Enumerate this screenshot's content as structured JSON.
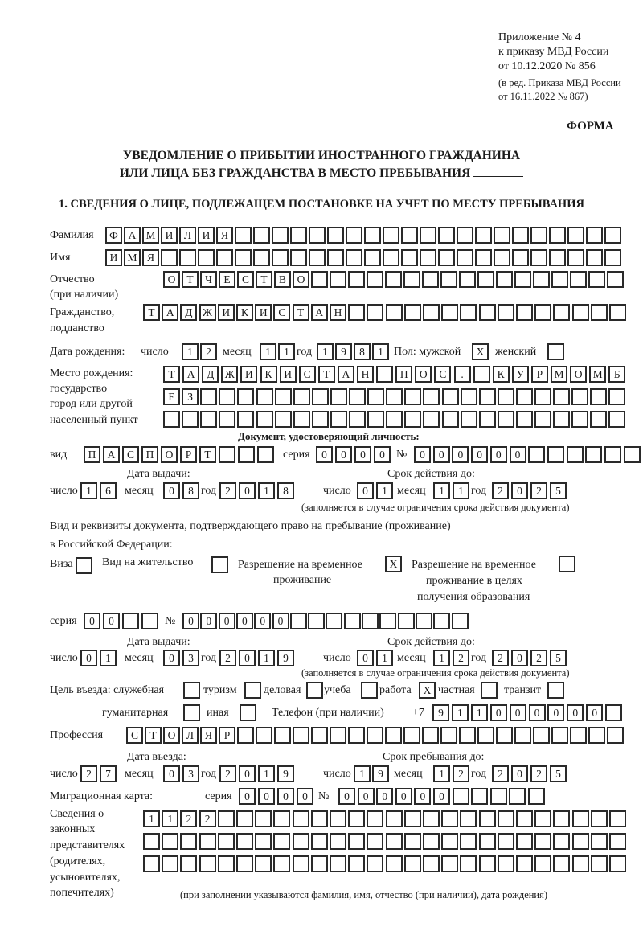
{
  "header": {
    "annex_line1": "Приложение № 4",
    "annex_line2": "к приказу МВД России",
    "annex_line3": "от 10.12.2020 № 856",
    "amend_line1": "(в ред. Приказа МВД России",
    "amend_line2": "от 16.11.2022 № 867)",
    "form_label": "ФОРМА",
    "title_line1": "УВЕДОМЛЕНИЕ О ПРИБЫТИИ ИНОСТРАННОГО ГРАЖДАНИНА",
    "title_line2": "ИЛИ ЛИЦА БЕЗ ГРАЖДАНСТВА В МЕСТО ПРЕБЫВАНИЯ",
    "section1": "1. СВЕДЕНИЯ О ЛИЦЕ, ПОДЛЕЖАЩЕМ ПОСТАНОВКЕ НА УЧЕТ ПО МЕСТУ ПРЕБЫВАНИЯ"
  },
  "labels": {
    "surname": "Фамилия",
    "name": "Имя",
    "patronymic": "Отчество",
    "patronymic_note": "(при наличии)",
    "citizenship1": "Гражданство,",
    "citizenship2": "подданство",
    "birth_date": "Дата рождения:",
    "day": "число",
    "month": "месяц",
    "year": "год",
    "sex": "Пол: мужской",
    "female": "женский",
    "birth_place1": "Место рождения:",
    "birth_place2": "государство",
    "birth_place3": "город или другой",
    "birth_place4": "населенный пункт",
    "id_doc": "Документ, удостоверяющий личность:",
    "kind": "вид",
    "series": "серия",
    "number": "№",
    "issue_date": "Дата выдачи:",
    "valid_until": "Срок действия до:",
    "valid_note": "(заполняется в случае ограничения срока действия документа)",
    "right_doc1": "Вид и реквизиты документа, подтверждающего право на пребывание (проживание)",
    "right_doc2": "в Российской Федерации:",
    "visa": "Виза",
    "residence_permit": "Вид на жительство",
    "temp_residence1": "Разрешение на временное",
    "temp_residence2": "проживание",
    "temp_edu1": "Разрешение на временное",
    "temp_edu2": "проживание в целях",
    "temp_edu3": "получения образования",
    "purpose": "Цель въезда: служебная",
    "tourism": "туризм",
    "business": "деловая",
    "study": "учеба",
    "work": "работа",
    "private": "частная",
    "transit": "транзит",
    "humanitarian": "гуманитарная",
    "other": "иная",
    "phone": "Телефон (при наличии)",
    "phone_prefix": "+7",
    "profession": "Профессия",
    "entry_date": "Дата въезда:",
    "stay_until": "Срок пребывания до:",
    "migration_card": "Миграционная карта:",
    "reps1": "Сведения о",
    "reps2": "законных",
    "reps3": "представителях",
    "reps4": "(родителях,",
    "reps5": "усыновителях,",
    "reps6": "попечителях)",
    "reps_note": "(при заполнении указываются фамилия, имя, отчество (при наличии), дата рождения)"
  },
  "values": {
    "surname": "ФАМИЛИЯ",
    "name": "ИМЯ",
    "patronymic": "ОТЧЕСТВО",
    "citizenship": "ТАДЖИКИСТАН",
    "birth_day": "12",
    "birth_month": "11",
    "birth_year": "1981",
    "sex_male": "X",
    "sex_female": "",
    "birth_place_row1": "ТАДЖИКИСТАН ПОС. КУРМОМБ",
    "birth_place_row2": "ЕЗ",
    "birth_place_row3": "",
    "id_kind": "ПАСПОРТ",
    "id_series": "0000",
    "id_number": "000000",
    "id_issue_day": "16",
    "id_issue_month": "08",
    "id_issue_year": "2018",
    "id_valid_day": "01",
    "id_valid_month": "11",
    "id_valid_year": "2025",
    "visa": "",
    "residence_permit": "",
    "temp_residence": "X",
    "temp_edu": "",
    "right_series": "00",
    "right_number": "000000",
    "right_issue_day": "01",
    "right_issue_month": "03",
    "right_issue_year": "2019",
    "right_valid_day": "01",
    "right_valid_month": "12",
    "right_valid_year": "2025",
    "purpose_official": "",
    "purpose_tourism": "",
    "purpose_business": "",
    "purpose_study": "",
    "purpose_work": "X",
    "purpose_private": "",
    "purpose_transit": "",
    "purpose_humanitarian": "",
    "purpose_other": "",
    "phone": "911000000",
    "profession": "СТОЛЯР",
    "entry_day": "27",
    "entry_month": "03",
    "entry_year": "2019",
    "stay_day": "19",
    "stay_month": "12",
    "stay_year": "2025",
    "mc_series": "0000",
    "mc_number": "000000",
    "reps_row1": "1122",
    "reps_row2": "",
    "reps_row3": ""
  }
}
